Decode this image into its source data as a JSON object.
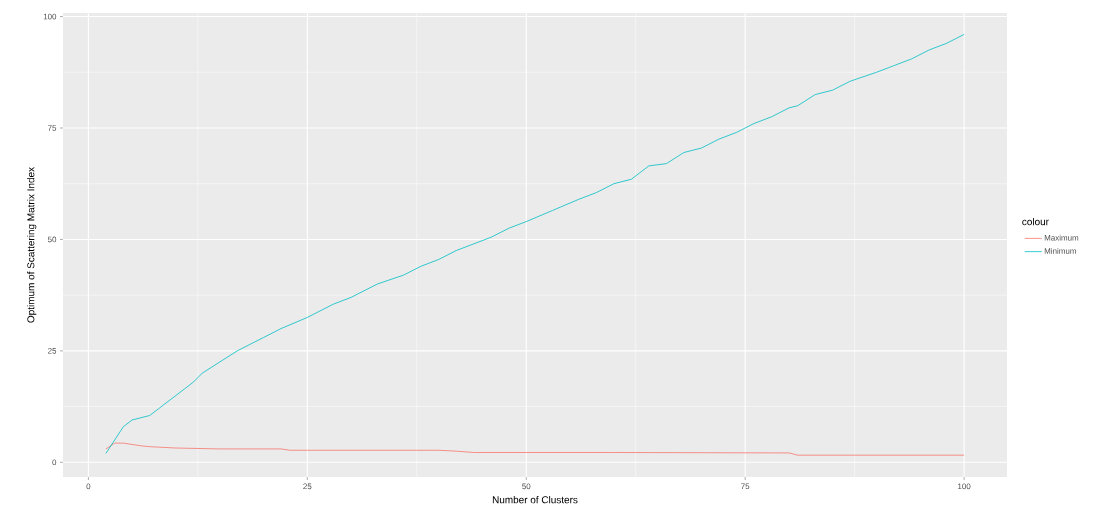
{
  "chart_data": {
    "type": "line",
    "xlabel": "Number of Clusters",
    "ylabel": "Optimum of Scattering Matrix Index",
    "legend_title": "colour",
    "xlim": [
      -2.9,
      104.9
    ],
    "ylim": [
      -3.3,
      100.8
    ],
    "xticks": [
      0,
      25,
      50,
      75,
      100
    ],
    "yticks": [
      0,
      25,
      50,
      75,
      100
    ],
    "grid": true,
    "legend": "right",
    "series": [
      {
        "name": "Maximum",
        "color": "#f8766d",
        "x": [
          2,
          3,
          4,
          5,
          6,
          7,
          10,
          15,
          22,
          23,
          40,
          42,
          44,
          60,
          80,
          81,
          100
        ],
        "values": [
          3,
          4.3,
          4.3,
          4,
          3.7,
          3.5,
          3.2,
          3,
          3,
          2.7,
          2.7,
          2.5,
          2.2,
          2.2,
          2.1,
          1.6,
          1.6
        ]
      },
      {
        "name": "Minimum",
        "color": "#00bfc4",
        "x": [
          2,
          3,
          4,
          5,
          6,
          7,
          8,
          10,
          12,
          13,
          15,
          17,
          20,
          22,
          25,
          28,
          30,
          33,
          36,
          38,
          40,
          42,
          44,
          46,
          48,
          50,
          53,
          56,
          58,
          60,
          62,
          64,
          66,
          68,
          70,
          72,
          74,
          76,
          78,
          80,
          81,
          83,
          85,
          87,
          90,
          92,
          94,
          96,
          98,
          99,
          100
        ],
        "values": [
          2,
          5,
          8,
          9.5,
          10,
          10.5,
          12,
          15,
          18,
          20,
          22.5,
          25,
          28,
          30,
          32.5,
          35.5,
          37,
          40,
          42,
          44,
          45.5,
          47.5,
          49,
          50.5,
          52.5,
          54,
          56.5,
          59,
          60.5,
          62.5,
          63.5,
          66.5,
          67,
          69.5,
          70.5,
          72.5,
          74,
          76,
          77.5,
          79.5,
          80,
          82.5,
          83.5,
          85.5,
          87.5,
          89,
          90.5,
          92.5,
          94,
          95,
          96
        ]
      }
    ]
  }
}
